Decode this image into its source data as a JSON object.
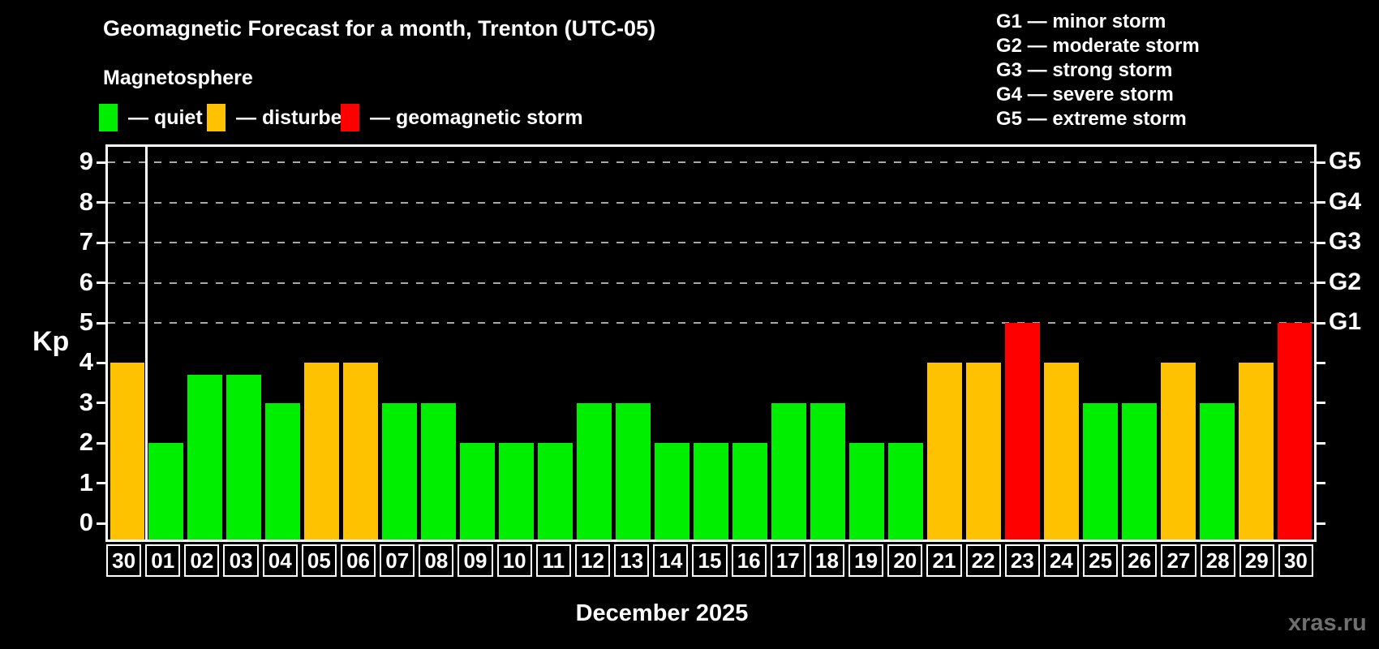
{
  "title": "Geomagnetic Forecast for a month, Trenton (UTC-05)",
  "subtitle": "Magnetosphere",
  "legend": {
    "items": [
      {
        "key": "quiet",
        "label": "— quiet",
        "color": "#00ee00"
      },
      {
        "key": "disturbed",
        "label": "— disturbed",
        "color": "#ffc200"
      },
      {
        "key": "storm",
        "label": "— geomagnetic storm",
        "color": "#ff0000"
      }
    ]
  },
  "g_legend": {
    "items": [
      "G1 — minor storm",
      "G2 — moderate storm",
      "G3 — strong storm",
      "G4 — severe storm",
      "G5 — extreme storm"
    ]
  },
  "y_axis": {
    "label": "Kp",
    "ticks": [
      0,
      1,
      2,
      3,
      4,
      5,
      6,
      7,
      8,
      9
    ]
  },
  "x_axis": {
    "title": "December 2025"
  },
  "watermark": "xras.ru",
  "chart_data": {
    "type": "bar",
    "title": "Geomagnetic Forecast for a month, Trenton (UTC-05)",
    "subtitle": "Magnetosphere",
    "categories": [
      "30",
      "01",
      "02",
      "03",
      "04",
      "05",
      "06",
      "07",
      "08",
      "09",
      "10",
      "11",
      "12",
      "13",
      "14",
      "15",
      "16",
      "17",
      "18",
      "19",
      "20",
      "21",
      "22",
      "23",
      "24",
      "25",
      "26",
      "27",
      "28",
      "29",
      "30"
    ],
    "values": [
      4,
      2,
      3.7,
      3.7,
      3,
      4,
      4,
      3,
      3,
      2,
      2,
      2,
      3,
      3,
      2,
      2,
      2,
      3,
      3,
      2,
      2,
      4,
      4,
      5,
      4,
      3,
      3,
      4,
      3,
      4,
      5
    ],
    "xlabel": "December 2025",
    "ylabel": "Kp",
    "ylim": [
      0,
      9
    ],
    "grid": "dashed-horizontal-at-storm-levels",
    "grid_levels": [
      5,
      6,
      7,
      8,
      9
    ],
    "right_tick_labels": {
      "5": "G1",
      "6": "G2",
      "7": "G3",
      "8": "G4",
      "9": "G5"
    },
    "month_separator_after_index": 0,
    "color_rules": {
      "quiet_below": 4,
      "storm_from": 5,
      "colors": {
        "quiet": "#00ee00",
        "disturbed": "#ffc200",
        "storm": "#ff0000"
      }
    }
  }
}
